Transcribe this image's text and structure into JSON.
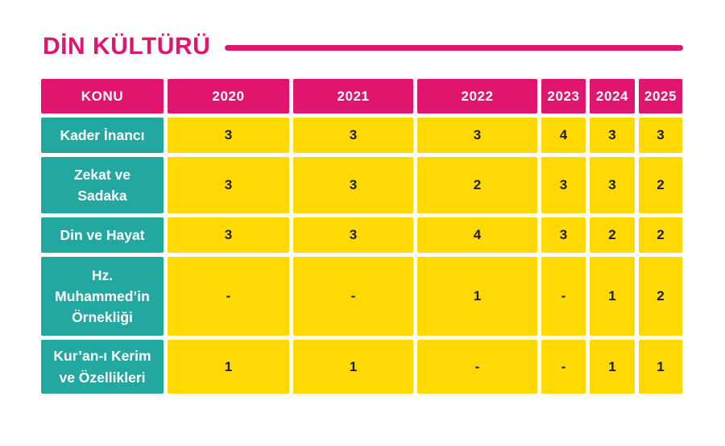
{
  "title": "DİN KÜLTÜRÜ",
  "colors": {
    "pink": "#E0166E",
    "teal": "#22A8A1",
    "yellow": "#FFD903",
    "text_dark": "#1E1E1E",
    "white": "#FFFFFF"
  },
  "chart_data": {
    "type": "table",
    "title": "DİN KÜLTÜRÜ",
    "row_header": "KONU",
    "categories": [
      "2020",
      "2021",
      "2022",
      "2023",
      "2024",
      "2025"
    ],
    "series": [
      {
        "name": "Kader İnancı",
        "values": [
          "3",
          "3",
          "3",
          "4",
          "3",
          "3"
        ]
      },
      {
        "name": "Zekat ve Sadaka",
        "values": [
          "3",
          "3",
          "2",
          "3",
          "3",
          "2"
        ]
      },
      {
        "name": "Din ve Hayat",
        "values": [
          "3",
          "3",
          "4",
          "3",
          "2",
          "2"
        ]
      },
      {
        "name": "Hz. Muhammed’in Örnekliği",
        "values": [
          "-",
          "-",
          "1",
          "-",
          "1",
          "2"
        ]
      },
      {
        "name": "Kur’an-ı Kerim ve Özellikleri",
        "values": [
          "1",
          "1",
          "-",
          "-",
          "1",
          "1"
        ]
      }
    ],
    "layout": {
      "header_bg": "pink",
      "row_label_bg": "teal",
      "value_bg": "yellow",
      "grid_gap_color": "white"
    }
  }
}
